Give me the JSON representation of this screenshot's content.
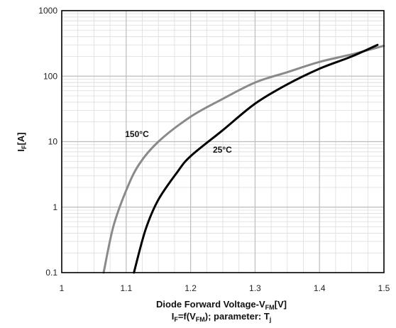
{
  "chart_data": {
    "type": "line",
    "x_scale": "linear",
    "y_scale": "log",
    "xlim": [
      1,
      1.5
    ],
    "ylim": [
      0.1,
      1000
    ],
    "x_ticks": [
      "1",
      "1.1",
      "1.2",
      "1.3",
      "1.4",
      "1.5"
    ],
    "y_ticks": [
      "0.1",
      "1",
      "10",
      "100",
      "1000"
    ],
    "grid": true,
    "ylabel": "I_F[A]",
    "xlabel": {
      "main": "Diode Forward Voltage-V",
      "sub": "FM",
      "suffix": "[V]"
    },
    "caption": {
      "prefix": "I",
      "sub1": "F",
      "mid": "=f(V",
      "sub2": "FM",
      "suffix": "); parameter: T",
      "sub3": "j"
    },
    "series": [
      {
        "name": "150°C",
        "color": "#8a8a8a",
        "points": [
          [
            1.065,
            0.1
          ],
          [
            1.08,
            0.5
          ],
          [
            1.1,
            1.8
          ],
          [
            1.12,
            4.5
          ],
          [
            1.15,
            10
          ],
          [
            1.2,
            24
          ],
          [
            1.25,
            45
          ],
          [
            1.3,
            80
          ],
          [
            1.35,
            115
          ],
          [
            1.4,
            165
          ],
          [
            1.45,
            215
          ],
          [
            1.5,
            290
          ]
        ]
      },
      {
        "name": "25°C",
        "color": "#000000",
        "points": [
          [
            1.112,
            0.1
          ],
          [
            1.13,
            0.45
          ],
          [
            1.15,
            1.3
          ],
          [
            1.18,
            3.5
          ],
          [
            1.2,
            6
          ],
          [
            1.25,
            15
          ],
          [
            1.3,
            38
          ],
          [
            1.35,
            75
          ],
          [
            1.4,
            130
          ],
          [
            1.45,
            200
          ],
          [
            1.49,
            300
          ]
        ]
      }
    ]
  }
}
